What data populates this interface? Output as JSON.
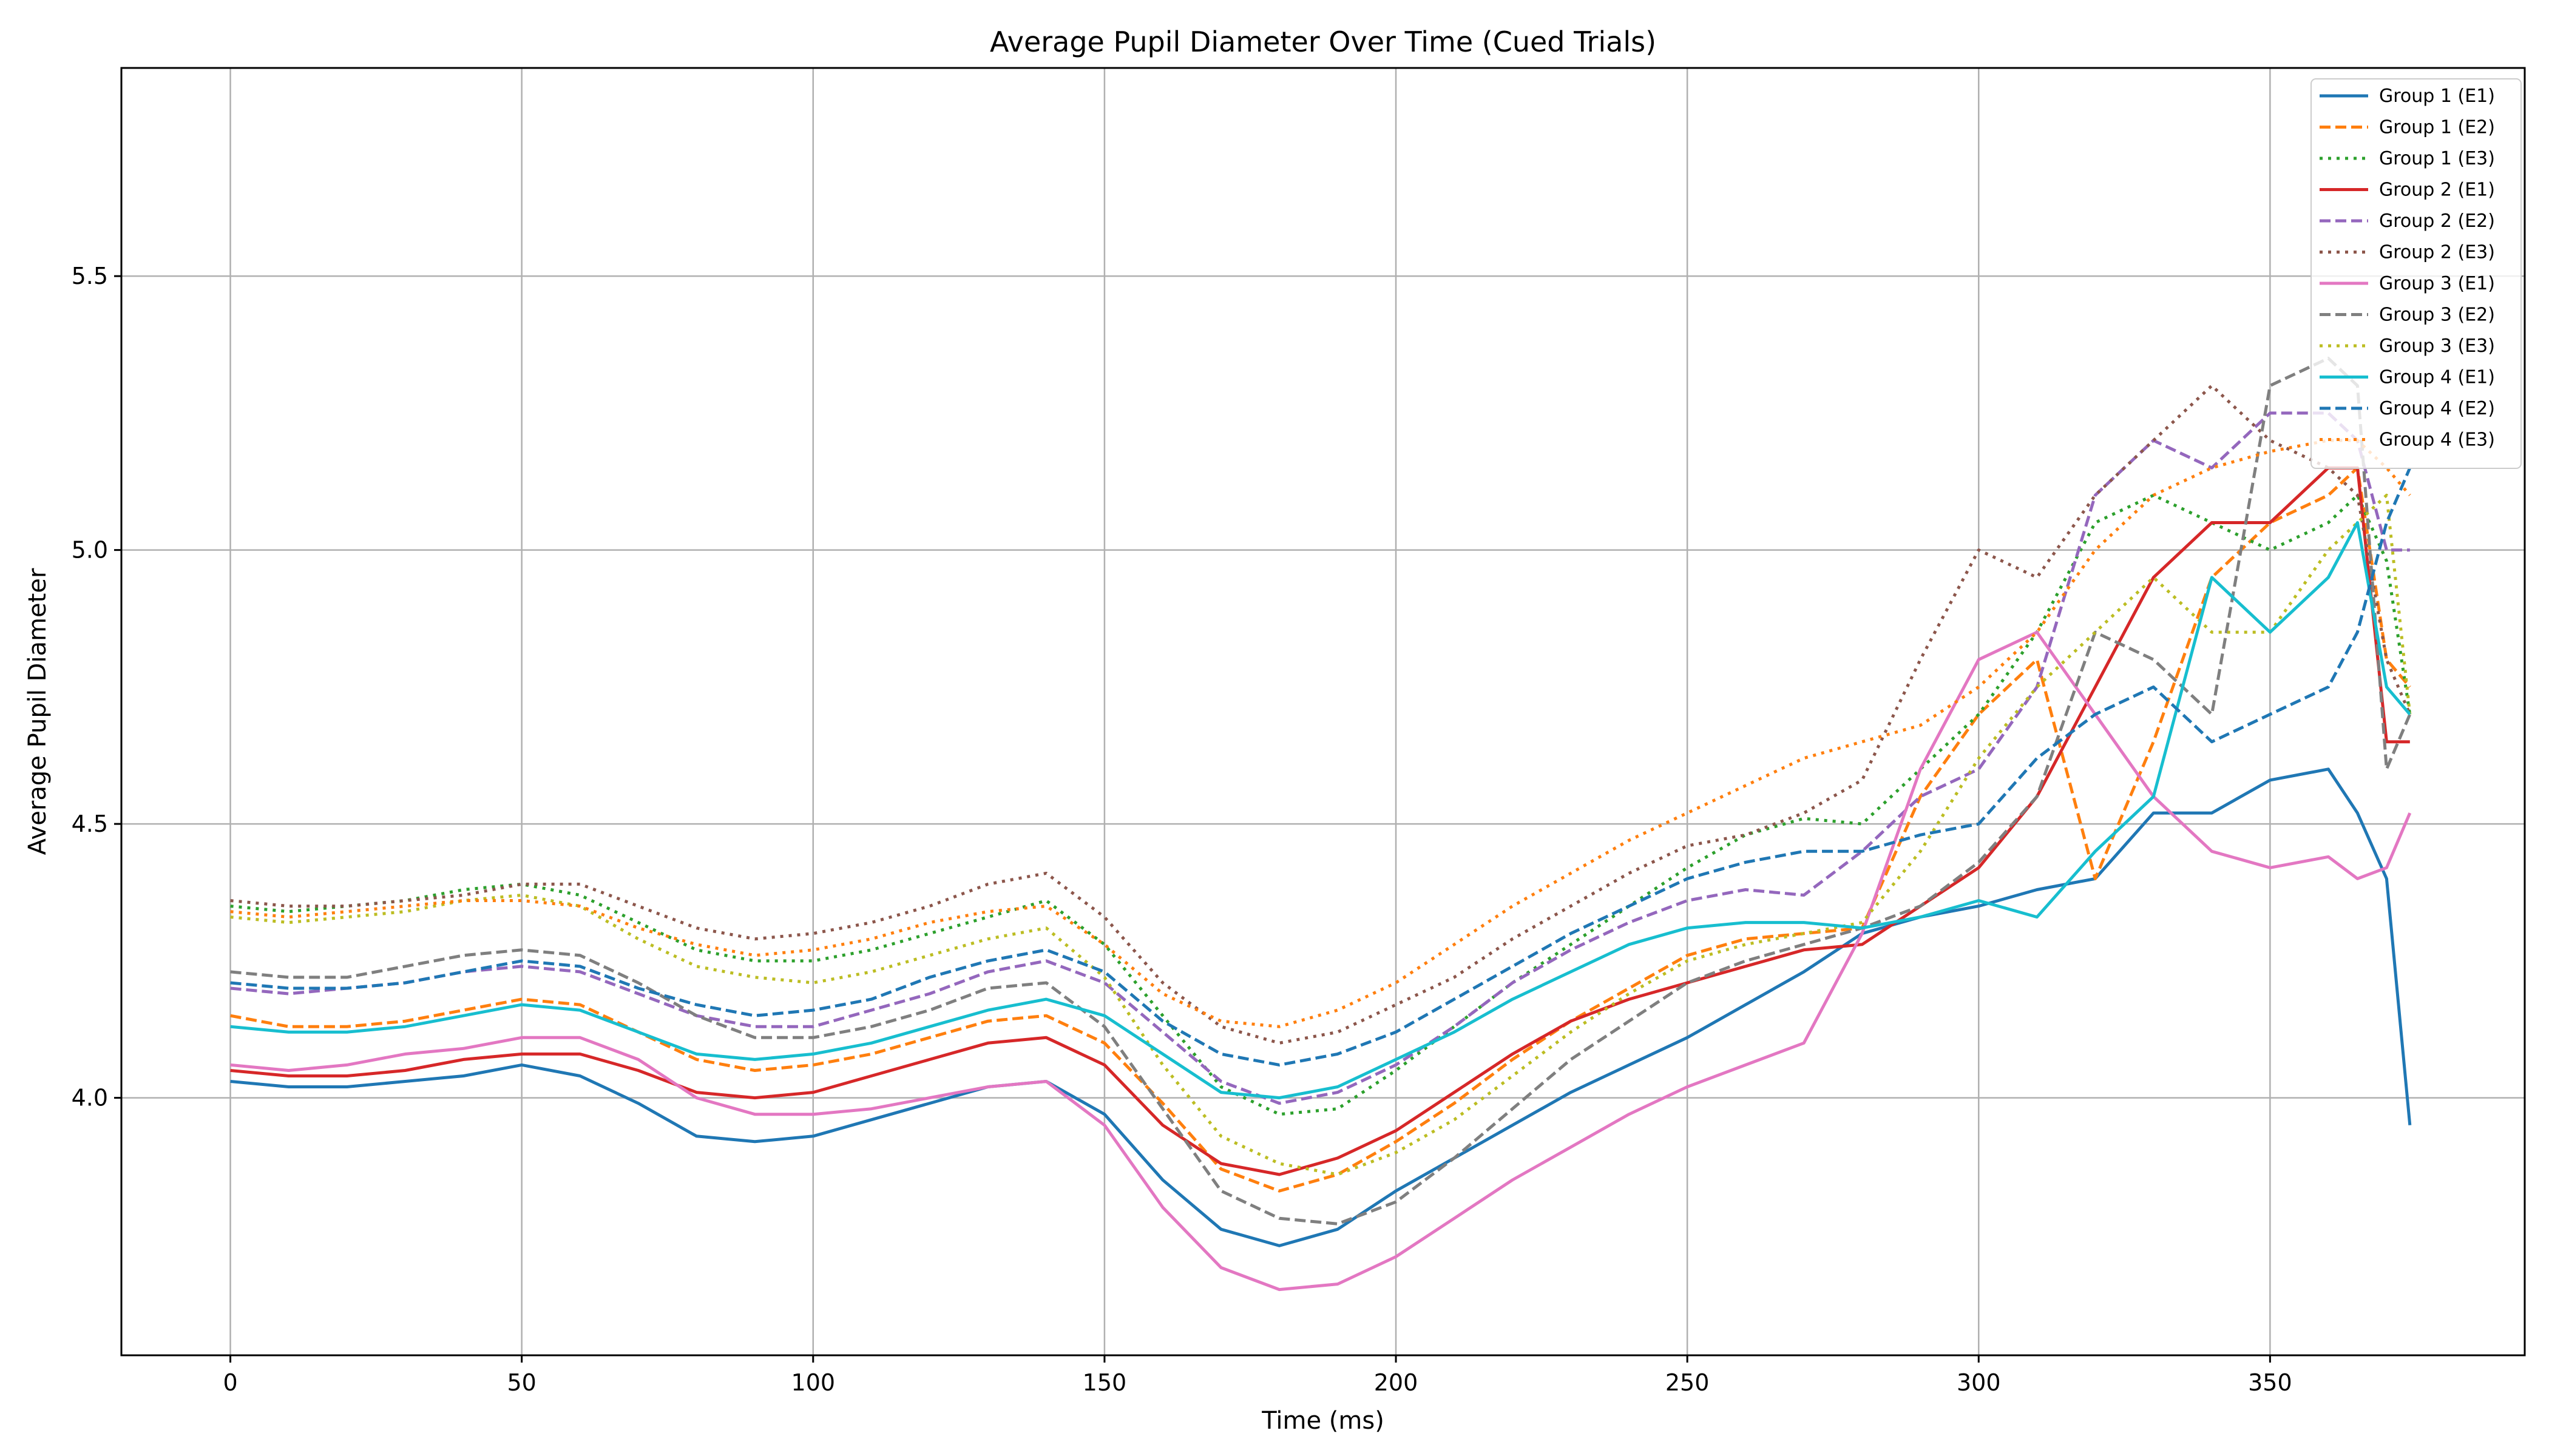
{
  "chart_data": {
    "type": "line",
    "title": "Average Pupil Diameter Over Time (Cued Trials)",
    "xlabel": "Time (ms)",
    "ylabel": "Average Pupil Diameter",
    "xlim": [
      -18.7,
      393.7
    ],
    "ylim": [
      3.53,
      5.88
    ],
    "xticks": [
      0,
      50,
      100,
      150,
      200,
      250,
      300,
      350
    ],
    "yticks": [
      4.0,
      4.5,
      5.0,
      5.5
    ],
    "ytick_labels": [
      "4.0",
      "4.5",
      "5.0",
      "5.5"
    ],
    "grid": true,
    "legend_position": "top-right",
    "x": [
      0,
      10,
      20,
      30,
      40,
      50,
      60,
      70,
      80,
      90,
      100,
      110,
      120,
      130,
      140,
      150,
      160,
      170,
      180,
      190,
      200,
      210,
      220,
      230,
      240,
      250,
      260,
      270,
      280,
      290,
      300,
      310,
      320,
      330,
      340,
      350,
      360,
      365,
      370,
      374
    ],
    "series": [
      {
        "name": "Group 1 (E1)",
        "color": "#1f77b4",
        "dash": "solid",
        "values": [
          4.03,
          4.02,
          4.02,
          4.03,
          4.04,
          4.06,
          4.04,
          3.99,
          3.93,
          3.92,
          3.93,
          3.96,
          3.99,
          4.02,
          4.03,
          3.97,
          3.85,
          3.76,
          3.73,
          3.76,
          3.83,
          3.89,
          3.95,
          4.01,
          4.06,
          4.11,
          4.17,
          4.23,
          4.3,
          4.33,
          4.35,
          4.38,
          4.4,
          4.52,
          4.52,
          4.58,
          4.6,
          4.52,
          4.4,
          3.95
        ]
      },
      {
        "name": "Group 1 (E2)",
        "color": "#ff7f0e",
        "dash": "dashed",
        "values": [
          4.15,
          4.13,
          4.13,
          4.14,
          4.16,
          4.18,
          4.17,
          4.12,
          4.07,
          4.05,
          4.06,
          4.08,
          4.11,
          4.14,
          4.15,
          4.1,
          3.99,
          3.87,
          3.83,
          3.86,
          3.92,
          3.99,
          4.07,
          4.14,
          4.2,
          4.26,
          4.29,
          4.3,
          4.31,
          4.55,
          4.7,
          4.8,
          4.4,
          4.65,
          4.95,
          5.05,
          5.1,
          5.15,
          4.8,
          4.75
        ]
      },
      {
        "name": "Group 1 (E3)",
        "color": "#2ca02c",
        "dash": "dotted",
        "values": [
          4.35,
          4.34,
          4.35,
          4.36,
          4.38,
          4.39,
          4.37,
          4.32,
          4.27,
          4.25,
          4.25,
          4.27,
          4.3,
          4.33,
          4.36,
          4.28,
          4.15,
          4.02,
          3.97,
          3.98,
          4.05,
          4.13,
          4.21,
          4.28,
          4.35,
          4.42,
          4.48,
          4.51,
          4.5,
          4.6,
          4.7,
          4.85,
          5.05,
          5.1,
          5.05,
          5.0,
          5.05,
          5.1,
          4.98,
          4.7
        ]
      },
      {
        "name": "Group 2 (E1)",
        "color": "#d62728",
        "dash": "solid",
        "values": [
          4.05,
          4.04,
          4.04,
          4.05,
          4.07,
          4.08,
          4.08,
          4.05,
          4.01,
          4.0,
          4.01,
          4.04,
          4.07,
          4.1,
          4.11,
          4.06,
          3.95,
          3.88,
          3.86,
          3.89,
          3.94,
          4.01,
          4.08,
          4.14,
          4.18,
          4.21,
          4.24,
          4.27,
          4.28,
          4.35,
          4.42,
          4.55,
          4.75,
          4.95,
          5.05,
          5.05,
          5.15,
          5.15,
          4.65,
          4.65
        ]
      },
      {
        "name": "Group 2 (E2)",
        "color": "#9467bd",
        "dash": "dashed",
        "values": [
          4.2,
          4.19,
          4.2,
          4.21,
          4.23,
          4.24,
          4.23,
          4.19,
          4.15,
          4.13,
          4.13,
          4.16,
          4.19,
          4.23,
          4.25,
          4.21,
          4.12,
          4.03,
          3.99,
          4.01,
          4.06,
          4.13,
          4.21,
          4.27,
          4.32,
          4.36,
          4.38,
          4.37,
          4.45,
          4.55,
          4.6,
          4.75,
          5.1,
          5.2,
          5.15,
          5.25,
          5.25,
          5.2,
          5.0,
          5.0
        ]
      },
      {
        "name": "Group 2 (E3)",
        "color": "#8c564b",
        "dash": "dotted",
        "values": [
          4.36,
          4.35,
          4.35,
          4.36,
          4.37,
          4.39,
          4.39,
          4.35,
          4.31,
          4.29,
          4.3,
          4.32,
          4.35,
          4.39,
          4.41,
          4.33,
          4.21,
          4.13,
          4.1,
          4.12,
          4.17,
          4.22,
          4.29,
          4.35,
          4.41,
          4.46,
          4.48,
          4.52,
          4.58,
          4.8,
          5.0,
          4.95,
          5.1,
          5.2,
          5.3,
          5.2,
          5.15,
          5.1,
          4.8,
          4.7
        ]
      },
      {
        "name": "Group 3 (E1)",
        "color": "#e377c2",
        "dash": "solid",
        "values": [
          4.06,
          4.05,
          4.06,
          4.08,
          4.09,
          4.11,
          4.11,
          4.07,
          4.0,
          3.97,
          3.97,
          3.98,
          4.0,
          4.02,
          4.03,
          3.95,
          3.8,
          3.69,
          3.65,
          3.66,
          3.71,
          3.78,
          3.85,
          3.91,
          3.97,
          4.02,
          4.06,
          4.1,
          4.3,
          4.6,
          4.8,
          4.85,
          4.7,
          4.55,
          4.45,
          4.42,
          4.44,
          4.4,
          4.42,
          4.52
        ]
      },
      {
        "name": "Group 3 (E2)",
        "color": "#7f7f7f",
        "dash": "dashed",
        "values": [
          4.23,
          4.22,
          4.22,
          4.24,
          4.26,
          4.27,
          4.26,
          4.21,
          4.15,
          4.11,
          4.11,
          4.13,
          4.16,
          4.2,
          4.21,
          4.13,
          3.98,
          3.83,
          3.78,
          3.77,
          3.81,
          3.89,
          3.98,
          4.07,
          4.14,
          4.21,
          4.25,
          4.28,
          4.31,
          4.35,
          4.43,
          4.55,
          4.85,
          4.8,
          4.7,
          5.3,
          5.35,
          5.3,
          4.6,
          4.7
        ]
      },
      {
        "name": "Group 3 (E3)",
        "color": "#bcbd22",
        "dash": "dotted",
        "values": [
          4.33,
          4.32,
          4.33,
          4.34,
          4.36,
          4.37,
          4.35,
          4.29,
          4.24,
          4.22,
          4.21,
          4.23,
          4.26,
          4.29,
          4.31,
          4.22,
          4.06,
          3.93,
          3.88,
          3.86,
          3.9,
          3.96,
          4.04,
          4.12,
          4.19,
          4.25,
          4.28,
          4.3,
          4.32,
          4.45,
          4.62,
          4.75,
          4.85,
          4.95,
          4.85,
          4.85,
          5.0,
          5.05,
          5.1,
          4.7
        ]
      },
      {
        "name": "Group 4 (E1)",
        "color": "#17becf",
        "dash": "solid",
        "values": [
          4.13,
          4.12,
          4.12,
          4.13,
          4.15,
          4.17,
          4.16,
          4.12,
          4.08,
          4.07,
          4.08,
          4.1,
          4.13,
          4.16,
          4.18,
          4.15,
          4.08,
          4.01,
          4.0,
          4.02,
          4.07,
          4.12,
          4.18,
          4.23,
          4.28,
          4.31,
          4.32,
          4.32,
          4.31,
          4.33,
          4.36,
          4.33,
          4.45,
          4.55,
          4.95,
          4.85,
          4.95,
          5.05,
          4.75,
          4.7
        ]
      },
      {
        "name": "Group 4 (E2)",
        "color": "#1f77b4",
        "dash": "dashed",
        "values": [
          4.21,
          4.2,
          4.2,
          4.21,
          4.23,
          4.25,
          4.24,
          4.2,
          4.17,
          4.15,
          4.16,
          4.18,
          4.22,
          4.25,
          4.27,
          4.23,
          4.14,
          4.08,
          4.06,
          4.08,
          4.12,
          4.18,
          4.24,
          4.3,
          4.35,
          4.4,
          4.43,
          4.45,
          4.45,
          4.48,
          4.5,
          4.62,
          4.7,
          4.75,
          4.65,
          4.7,
          4.75,
          4.85,
          5.05,
          5.15
        ]
      },
      {
        "name": "Group 4 (E3)",
        "color": "#ff7f0e",
        "dash": "dotted",
        "values": [
          4.34,
          4.33,
          4.34,
          4.35,
          4.36,
          4.36,
          4.35,
          4.31,
          4.28,
          4.26,
          4.27,
          4.29,
          4.32,
          4.34,
          4.35,
          4.28,
          4.19,
          4.14,
          4.13,
          4.16,
          4.21,
          4.28,
          4.35,
          4.41,
          4.47,
          4.52,
          4.57,
          4.62,
          4.65,
          4.68,
          4.75,
          4.85,
          5.0,
          5.1,
          5.15,
          5.18,
          5.2,
          5.2,
          5.15,
          5.1
        ]
      }
    ]
  }
}
